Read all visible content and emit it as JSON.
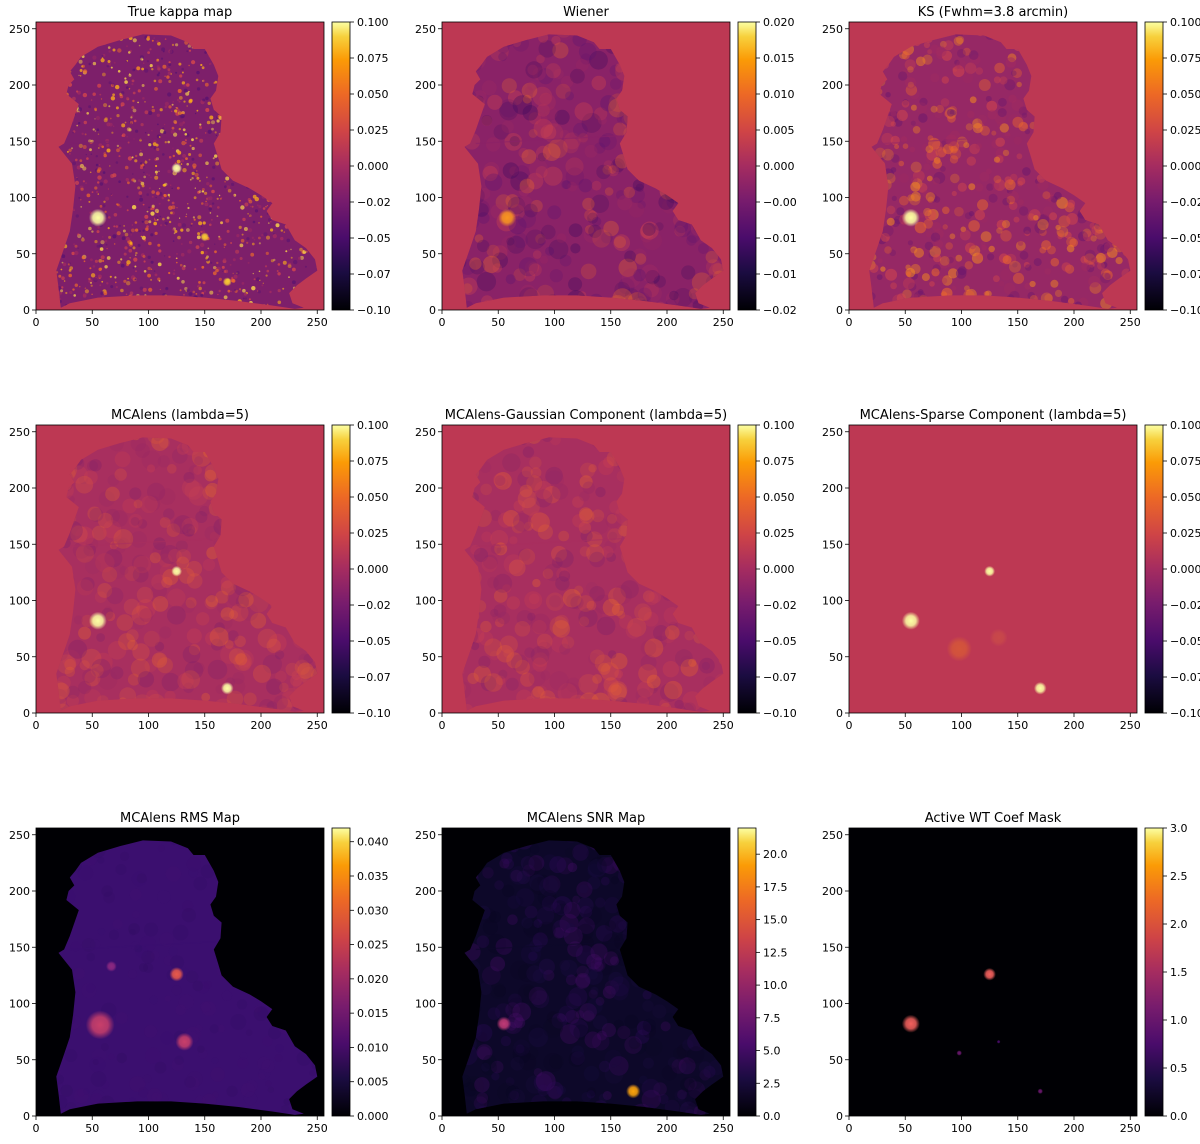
{
  "chart_data": [
    {
      "type": "heatmap",
      "title": "True kappa map",
      "colormap": "inferno",
      "xlim": [
        0,
        256
      ],
      "ylim": [
        0,
        256
      ],
      "xticks": [
        "0",
        "50",
        "100",
        "150",
        "200",
        "250"
      ],
      "yticks": [
        "0",
        "50",
        "100",
        "150",
        "200",
        "250"
      ],
      "colorbar": {
        "range": [
          -0.1,
          0.1
        ],
        "ticks": [
          "0.100",
          "0.075",
          "0.050",
          "0.025",
          "0.000",
          "−0.02",
          "−0.05",
          "−0.07",
          "−0.10"
        ]
      },
      "background": "#bd3853",
      "field": {
        "texture": "noisy",
        "base": "#7d1f6a",
        "speckle": [
          "#5a1370",
          "#a22b60",
          "#d4474c",
          "#ee6a2b",
          "#f9a81c",
          "#fcd84a"
        ]
      },
      "peaks": [
        {
          "x": 55,
          "y": 82,
          "r": 5,
          "color": "#fcffa4"
        },
        {
          "x": 125,
          "y": 126,
          "r": 3,
          "color": "#fcffa4"
        },
        {
          "x": 150,
          "y": 65,
          "r": 2.5,
          "color": "#f9c932"
        },
        {
          "x": 170,
          "y": 25,
          "r": 2.5,
          "color": "#f9c932"
        }
      ]
    },
    {
      "type": "heatmap",
      "title": "Wiener",
      "colormap": "inferno",
      "xlim": [
        0,
        256
      ],
      "ylim": [
        0,
        256
      ],
      "xticks": [
        "0",
        "50",
        "100",
        "150",
        "200",
        "250"
      ],
      "yticks": [
        "0",
        "50",
        "100",
        "150",
        "200",
        "250"
      ],
      "colorbar": {
        "range": [
          -0.02,
          0.02
        ],
        "ticks": [
          "0.020",
          "0.015",
          "0.010",
          "0.005",
          "0.000",
          "−0.00",
          "−0.01",
          "−0.01",
          "−0.02"
        ]
      },
      "background": "#bd3853",
      "field": {
        "texture": "smooth",
        "base": "#8a2267",
        "speckle": [
          "#3a0a5e",
          "#5a1370",
          "#a22b60",
          "#d4474c",
          "#ee6a2b"
        ]
      },
      "peaks": [
        {
          "x": 58,
          "y": 82,
          "r": 5,
          "color": "#f89520"
        }
      ]
    },
    {
      "type": "heatmap",
      "title": "KS (Fwhm=3.8 arcmin)",
      "colormap": "inferno",
      "xlim": [
        0,
        256
      ],
      "ylim": [
        0,
        256
      ],
      "xticks": [
        "0",
        "50",
        "100",
        "150",
        "200",
        "250"
      ],
      "yticks": [
        "0",
        "50",
        "100",
        "150",
        "200",
        "250"
      ],
      "colorbar": {
        "range": [
          -0.1,
          0.1
        ],
        "ticks": [
          "0.100",
          "0.075",
          "0.050",
          "0.025",
          "0.000",
          "−0.02",
          "−0.05",
          "−0.07",
          "−0.10"
        ]
      },
      "background": "#bd3853",
      "field": {
        "texture": "blotchy",
        "base": "#962865",
        "speckle": [
          "#6a176e",
          "#a22b60",
          "#d4474c",
          "#ee6a2b",
          "#f58a20"
        ]
      },
      "peaks": [
        {
          "x": 55,
          "y": 82,
          "r": 5,
          "color": "#fcffa4"
        }
      ]
    },
    {
      "type": "heatmap",
      "title": "MCAlens (lambda=5)",
      "colormap": "inferno",
      "xlim": [
        0,
        256
      ],
      "ylim": [
        0,
        256
      ],
      "xticks": [
        "0",
        "50",
        "100",
        "150",
        "200",
        "250"
      ],
      "yticks": [
        "0",
        "50",
        "100",
        "150",
        "200",
        "250"
      ],
      "colorbar": {
        "range": [
          -0.1,
          0.1
        ],
        "ticks": [
          "0.100",
          "0.075",
          "0.050",
          "0.025",
          "0.000",
          "−0.02",
          "−0.05",
          "−0.07",
          "−0.10"
        ]
      },
      "background": "#bd3853",
      "field": {
        "texture": "smooth",
        "base": "#a82f5f",
        "speckle": [
          "#7d1f6a",
          "#962865",
          "#cc4250",
          "#e05a3c",
          "#ee6a2b"
        ]
      },
      "peaks": [
        {
          "x": 55,
          "y": 82,
          "r": 5,
          "color": "#fcffa4"
        },
        {
          "x": 125,
          "y": 126,
          "r": 3,
          "color": "#fcffa4"
        },
        {
          "x": 170,
          "y": 22,
          "r": 3.5,
          "color": "#fcffa4"
        }
      ]
    },
    {
      "type": "heatmap",
      "title": "MCAlens-Gaussian Component (lambda=5)",
      "colormap": "inferno",
      "xlim": [
        0,
        256
      ],
      "ylim": [
        0,
        256
      ],
      "xticks": [
        "0",
        "50",
        "100",
        "150",
        "200",
        "250"
      ],
      "yticks": [
        "0",
        "50",
        "100",
        "150",
        "200",
        "250"
      ],
      "colorbar": {
        "range": [
          -0.1,
          0.1
        ],
        "ticks": [
          "0.100",
          "0.075",
          "0.050",
          "0.025",
          "0.000",
          "−0.02",
          "−0.05",
          "−0.07",
          "−0.10"
        ]
      },
      "background": "#bd3853",
      "field": {
        "texture": "smooth",
        "base": "#a82f5f",
        "speckle": [
          "#7d1f6a",
          "#962865",
          "#cc4250",
          "#e05a3c",
          "#ee6a2b"
        ]
      },
      "peaks": []
    },
    {
      "type": "heatmap",
      "title": "MCAlens-Sparse Component (lambda=5)",
      "colormap": "inferno",
      "xlim": [
        0,
        256
      ],
      "ylim": [
        0,
        256
      ],
      "xticks": [
        "0",
        "50",
        "100",
        "150",
        "200",
        "250"
      ],
      "yticks": [
        "0",
        "50",
        "100",
        "150",
        "200",
        "250"
      ],
      "colorbar": {
        "range": [
          -0.1,
          0.1
        ],
        "ticks": [
          "0.100",
          "0.075",
          "0.050",
          "0.025",
          "0.000",
          "−0.02",
          "−0.05",
          "−0.07",
          "−0.10"
        ]
      },
      "background": "#bd3853",
      "field": {
        "texture": "none"
      },
      "peaks": [
        {
          "x": 55,
          "y": 82,
          "r": 5,
          "color": "#fcffa4"
        },
        {
          "x": 125,
          "y": 126,
          "r": 3,
          "color": "#fcffa4"
        },
        {
          "x": 170,
          "y": 22,
          "r": 3.5,
          "color": "#fcffa4"
        },
        {
          "x": 98,
          "y": 57,
          "r": 7,
          "color": "#d4553a"
        },
        {
          "x": 133,
          "y": 67,
          "r": 5,
          "color": "#c8484a"
        }
      ]
    },
    {
      "type": "heatmap",
      "title": "MCAlens RMS Map",
      "colormap": "inferno",
      "xlim": [
        0,
        256
      ],
      "ylim": [
        0,
        256
      ],
      "xticks": [
        "0",
        "50",
        "100",
        "150",
        "200",
        "250"
      ],
      "yticks": [
        "0",
        "50",
        "100",
        "150",
        "200",
        "250"
      ],
      "colorbar": {
        "range": [
          0.0,
          0.042
        ],
        "ticks": [
          "0.040",
          "0.035",
          "0.030",
          "0.025",
          "0.020",
          "0.015",
          "0.010",
          "0.005",
          "0.000"
        ],
        "tick_values": [
          0.04,
          0.035,
          0.03,
          0.025,
          0.02,
          0.015,
          0.01,
          0.005,
          0.0
        ]
      },
      "background": "#000004",
      "field": {
        "texture": "flat",
        "base": "#3b0f6f",
        "speckle": [
          "#2e0d5e",
          "#3b0f6f",
          "#451170"
        ]
      },
      "peaks": [
        {
          "x": 57,
          "y": 81,
          "r": 8,
          "color": "#c83f6a"
        },
        {
          "x": 125,
          "y": 126,
          "r": 4,
          "color": "#e8594a"
        },
        {
          "x": 132,
          "y": 66,
          "r": 5,
          "color": "#c83f6a"
        },
        {
          "x": 67,
          "y": 133,
          "r": 3,
          "color": "#8c2981"
        }
      ]
    },
    {
      "type": "heatmap",
      "title": "MCAlens SNR Map",
      "colormap": "inferno",
      "xlim": [
        0,
        256
      ],
      "ylim": [
        0,
        256
      ],
      "xticks": [
        "0",
        "50",
        "100",
        "150",
        "200",
        "250"
      ],
      "yticks": [
        "0",
        "50",
        "100",
        "150",
        "200",
        "250"
      ],
      "colorbar": {
        "range": [
          0.0,
          22.0
        ],
        "ticks": [
          "20.0",
          "17.5",
          "15.0",
          "12.5",
          "10.0",
          "7.5",
          "5.0",
          "2.5",
          "0.0"
        ],
        "tick_values": [
          20.0,
          17.5,
          15.0,
          12.5,
          10.0,
          7.5,
          5.0,
          2.5,
          0.0
        ]
      },
      "background": "#000004",
      "field": {
        "texture": "smooth",
        "base": "#0d0829",
        "speckle": [
          "#0a0722",
          "#1b0c41",
          "#2f0a5b",
          "#4a0c6b"
        ]
      },
      "peaks": [
        {
          "x": 55,
          "y": 82,
          "r": 4,
          "color": "#c03a76"
        },
        {
          "x": 170,
          "y": 22,
          "r": 4,
          "color": "#fca50a"
        }
      ]
    },
    {
      "type": "heatmap",
      "title": "Active WT Coef Mask",
      "colormap": "inferno",
      "xlim": [
        0,
        256
      ],
      "ylim": [
        0,
        256
      ],
      "xticks": [
        "0",
        "50",
        "100",
        "150",
        "200",
        "250"
      ],
      "yticks": [
        "0",
        "50",
        "100",
        "150",
        "200",
        "250"
      ],
      "colorbar": {
        "range": [
          0.0,
          3.0
        ],
        "ticks": [
          "3.0",
          "2.5",
          "2.0",
          "1.5",
          "1.0",
          "0.5",
          "0.0"
        ]
      },
      "background": "#000004",
      "field": {
        "texture": "none"
      },
      "peaks": [
        {
          "x": 55,
          "y": 82,
          "r": 5,
          "color": "#f1605d"
        },
        {
          "x": 125,
          "y": 126,
          "r": 3.5,
          "color": "#f1605d"
        },
        {
          "x": 98,
          "y": 56,
          "r": 1.5,
          "color": "#6a176e"
        },
        {
          "x": 170,
          "y": 22,
          "r": 1.5,
          "color": "#6a176e"
        },
        {
          "x": 133,
          "y": 66,
          "r": 1,
          "color": "#4a0c6b"
        }
      ]
    }
  ]
}
